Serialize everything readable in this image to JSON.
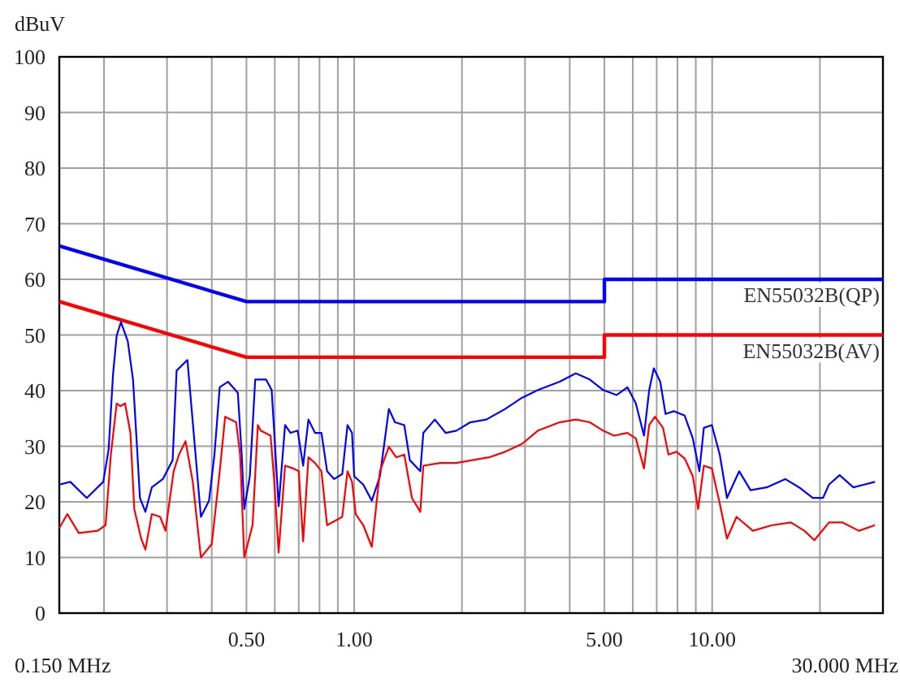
{
  "chart_data": {
    "type": "line",
    "ylabel": "dBuV",
    "log": "x",
    "grid": true,
    "legend": false,
    "marker": "none",
    "line_style": "solid",
    "xlim": [
      0.15,
      30
    ],
    "ylim": [
      0,
      100
    ],
    "annotations": [
      "0.150 MHz",
      "30.000 MHz"
    ],
    "xticks": [
      {
        "value": 0.15,
        "label": null
      },
      {
        "value": 0.2,
        "label": null
      },
      {
        "value": 0.3,
        "label": null
      },
      {
        "value": 0.4,
        "label": null
      },
      {
        "value": 0.5,
        "label": "0.50"
      },
      {
        "value": 0.6,
        "label": null
      },
      {
        "value": 0.7,
        "label": null
      },
      {
        "value": 0.8,
        "label": null
      },
      {
        "value": 0.9,
        "label": null
      },
      {
        "value": 1,
        "label": "1.00"
      },
      {
        "value": 2,
        "label": null
      },
      {
        "value": 3,
        "label": null
      },
      {
        "value": 4,
        "label": null
      },
      {
        "value": 5,
        "label": "5.00"
      },
      {
        "value": 6,
        "label": null
      },
      {
        "value": 7,
        "label": null
      },
      {
        "value": 8,
        "label": null
      },
      {
        "value": 9,
        "label": null
      },
      {
        "value": 10,
        "label": "10.00"
      },
      {
        "value": 20,
        "label": null
      },
      {
        "value": 30,
        "label": null
      }
    ],
    "yticks": [
      0,
      10,
      20,
      30,
      40,
      50,
      60,
      70,
      80,
      90,
      100
    ],
    "series": [
      {
        "name": "EN55032B(QP)",
        "color": "#0000ff",
        "x": [
          0.15,
          0.5,
          5,
          5,
          30
        ],
        "values": [
          66,
          56,
          56,
          60,
          60
        ]
      },
      {
        "name": "EN55032B(AV)",
        "color": "#ff0000",
        "x": [
          0.15,
          0.5,
          5,
          5,
          30
        ],
        "values": [
          56,
          46,
          46,
          50,
          50
        ]
      },
      {
        "color": "#0000ff",
        "x": [
          0.15,
          0.161,
          0.179,
          0.199,
          0.206,
          0.212,
          0.217,
          0.223,
          0.233,
          0.241,
          0.247,
          0.252,
          0.261,
          0.272,
          0.292,
          0.311,
          0.319,
          0.342,
          0.354,
          0.373,
          0.393,
          0.407,
          0.421,
          0.444,
          0.473,
          0.485,
          0.493,
          0.511,
          0.529,
          0.567,
          0.588,
          0.598,
          0.615,
          0.641,
          0.664,
          0.695,
          0.72,
          0.745,
          0.777,
          0.81,
          0.84,
          0.879,
          0.926,
          0.958,
          0.986,
          1,
          1.06,
          1.12,
          1.18,
          1.25,
          1.3,
          1.38,
          1.43,
          1.53,
          1.56,
          1.68,
          1.8,
          1.93,
          2.11,
          2.34,
          2.64,
          2.94,
          3.26,
          3.75,
          4.16,
          4.55,
          4.96,
          5.41,
          5.8,
          6.12,
          6.45,
          6.67,
          6.87,
          7.16,
          7.41,
          7.81,
          8.38,
          8.83,
          9.21,
          9.48,
          9.98,
          10.5,
          11,
          11.9,
          12.8,
          14.2,
          16,
          17.5,
          19.1,
          20.4,
          21.2,
          22.7,
          24.8,
          26.6,
          28.5
        ],
        "values": [
          23.1,
          23.6,
          20.7,
          23.6,
          29.4,
          43,
          49.9,
          52.3,
          48.9,
          42,
          30.4,
          20.7,
          18.2,
          22.6,
          24.1,
          27.5,
          43.6,
          45.5,
          34.3,
          17.3,
          20.2,
          28.5,
          40.6,
          41.6,
          39.6,
          28.5,
          18.7,
          24.6,
          42,
          42,
          40.1,
          32.4,
          19.2,
          33.8,
          32.4,
          32.8,
          26.5,
          34.8,
          32.4,
          32.4,
          25.5,
          24.1,
          25,
          33.8,
          32.4,
          24.6,
          23.1,
          20.2,
          24.6,
          36.7,
          34.3,
          33.8,
          27.5,
          25.5,
          32.4,
          34.8,
          32.4,
          32.8,
          34.3,
          34.8,
          36.7,
          38.7,
          40.1,
          41.6,
          43.1,
          42,
          40.1,
          39.2,
          40.6,
          37.7,
          31.9,
          40.1,
          44,
          41.6,
          35.8,
          36.3,
          35.5,
          31.4,
          25.5,
          33.3,
          33.8,
          28.5,
          20.7,
          25.5,
          22.1,
          22.6,
          24.1,
          22.6,
          20.7,
          20.7,
          23.1,
          24.8,
          22.6,
          23.1,
          23.6
        ]
      },
      {
        "color": "#ff0000",
        "x": [
          0.15,
          0.158,
          0.17,
          0.192,
          0.202,
          0.209,
          0.217,
          0.222,
          0.229,
          0.237,
          0.243,
          0.254,
          0.261,
          0.272,
          0.287,
          0.297,
          0.313,
          0.324,
          0.338,
          0.354,
          0.373,
          0.4,
          0.421,
          0.436,
          0.468,
          0.48,
          0.493,
          0.52,
          0.538,
          0.548,
          0.584,
          0.598,
          0.615,
          0.641,
          0.676,
          0.7,
          0.72,
          0.745,
          0.777,
          0.81,
          0.84,
          0.926,
          0.958,
          0.986,
          1.01,
          1.06,
          1.12,
          1.18,
          1.25,
          1.31,
          1.38,
          1.45,
          1.53,
          1.56,
          1.74,
          1.93,
          2.14,
          2.38,
          2.64,
          2.94,
          3.26,
          3.75,
          4.16,
          4.55,
          4.96,
          5.32,
          5.8,
          6.12,
          6.45,
          6.67,
          6.92,
          7.29,
          7.55,
          7.95,
          8.38,
          8.83,
          9.14,
          9.48,
          9.98,
          10.5,
          11,
          11.7,
          13,
          14.7,
          16.6,
          18.1,
          19.3,
          21.2,
          23.1,
          25.7,
          28.5
        ],
        "values": [
          15.3,
          17.8,
          14.4,
          14.8,
          15.8,
          28.5,
          37.7,
          37.2,
          37.7,
          32.4,
          18.7,
          13.4,
          11.4,
          17.8,
          17.3,
          14.8,
          25.5,
          28.5,
          30.9,
          23.6,
          10,
          12.4,
          25.5,
          35.3,
          34.3,
          28.5,
          10,
          15.8,
          33.8,
          32.8,
          31.9,
          23.6,
          10.9,
          26.5,
          26,
          25.5,
          12.9,
          28,
          27,
          25.5,
          15.8,
          17.3,
          25.5,
          23.6,
          17.8,
          15.8,
          11.9,
          25.5,
          29.9,
          28,
          28.5,
          20.7,
          18.2,
          26.5,
          27,
          27,
          27.5,
          28,
          29,
          30.4,
          32.8,
          34.3,
          34.8,
          34.3,
          32.8,
          31.9,
          32.4,
          31.4,
          26,
          33.8,
          35.3,
          33.3,
          28.5,
          29,
          27.8,
          24.6,
          18.7,
          26.5,
          26,
          19.7,
          13.4,
          17.3,
          14.8,
          15.8,
          16.3,
          14.8,
          13.1,
          16.3,
          16.3,
          14.8,
          15.8
        ]
      }
    ]
  }
}
